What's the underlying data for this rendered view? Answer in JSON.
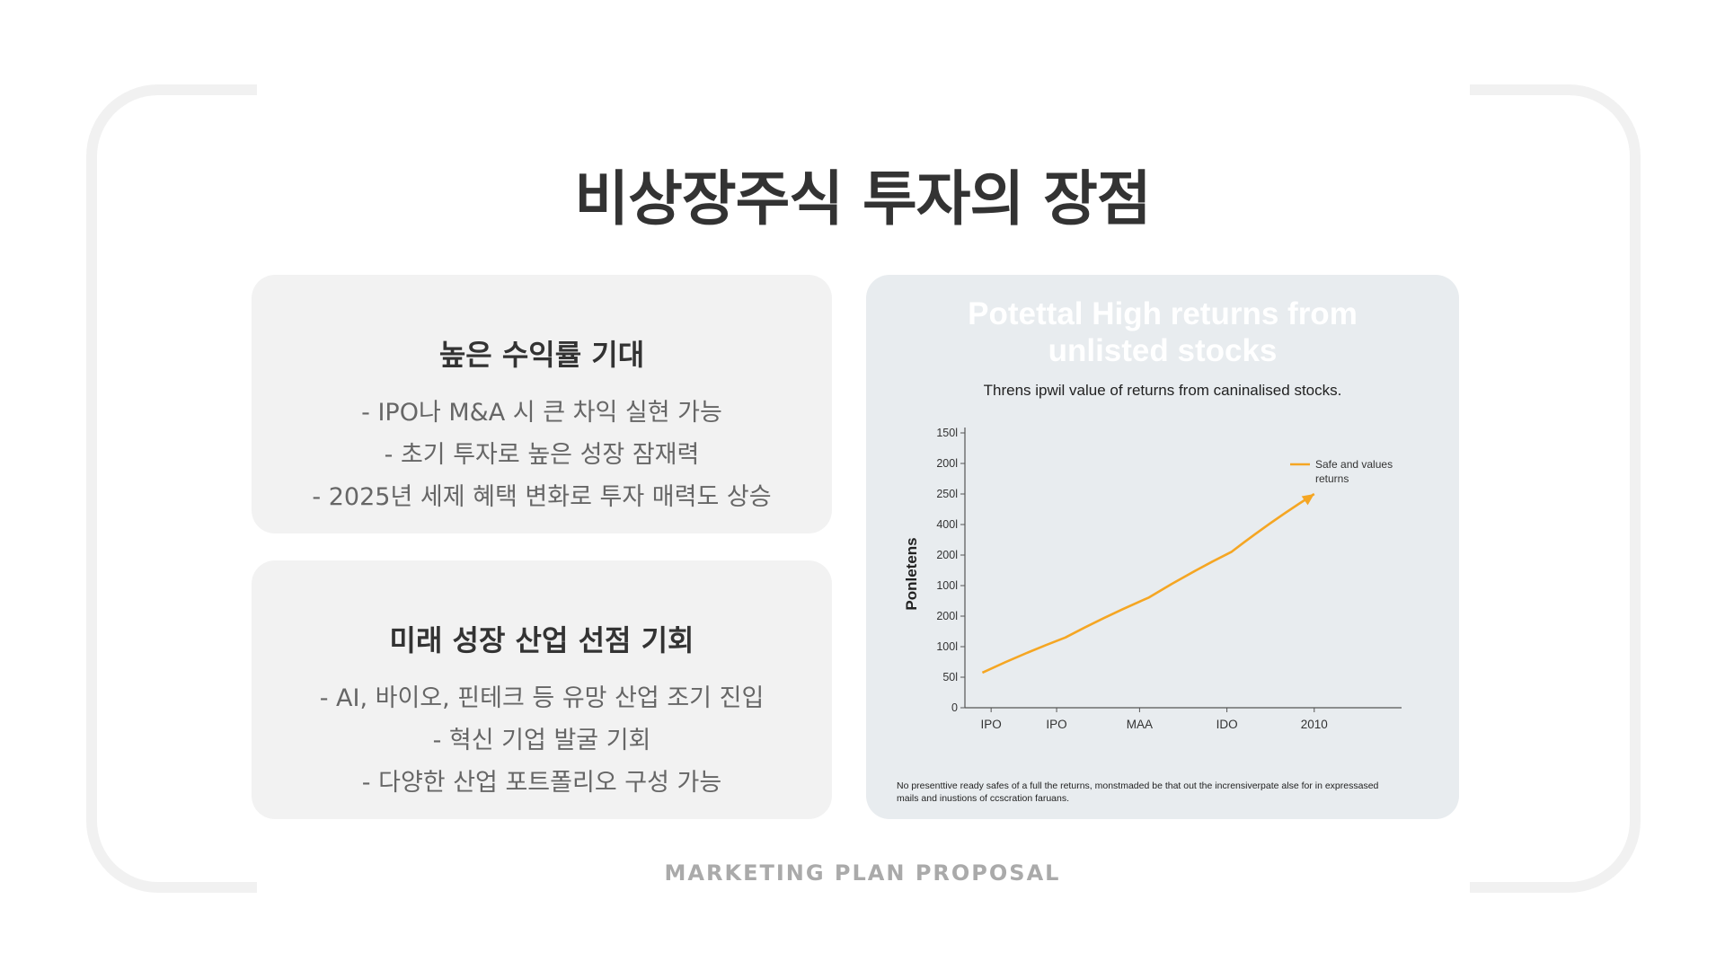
{
  "slide": {
    "title": "비상장주식 투자의 장점",
    "footer": "MARKETING PLAN PROPOSAL"
  },
  "cards": [
    {
      "title": "높은 수익률 기대",
      "lines": [
        "- IPO나 M&A 시 큰 차익 실현 가능",
        "- 초기 투자로 높은 성장 잠재력",
        "- 2025년 세제 혜택 변화로 투자 매력도 상승"
      ]
    },
    {
      "title": "미래 성장 산업 선점 기회",
      "lines": [
        "- AI, 바이오, 핀테크 등 유망 산업 조기 진입",
        "- 혁신 기업 발굴 기회",
        "- 다양한 산업 포트폴리오 구성 가능"
      ]
    }
  ],
  "chart_data": {
    "type": "line",
    "title": "Potettal High returns from unlisted stocks",
    "title_lines": [
      "Potettal High returns from",
      "unlisted stocks"
    ],
    "subtitle": "Threns ipwil value of returns from caninalised stocks.",
    "ylabel": "Ponletens",
    "xlabel": "",
    "y_tick_labels": [
      "0",
      "50l",
      "100l",
      "200l",
      "100l",
      "200l",
      "400l",
      "250l",
      "200l",
      "150l"
    ],
    "x_tick_labels": [
      "IPO",
      "IPO",
      "MAA",
      "IDO",
      "2010"
    ],
    "series": [
      {
        "name": "Safe and values returns",
        "legend_lines": [
          "Safe and values",
          "returns"
        ],
        "x": [
          0,
          1,
          2,
          3,
          4
        ],
        "y_tick_position": [
          1.15,
          2.3,
          3.6,
          5.1,
          7.0
        ],
        "color": "#f5a623"
      }
    ],
    "legend_position": "top-right",
    "grid": false,
    "footnote_lines": [
      "No presenttive ready safes of a full the returns, monstmaded be that out the incrensiverpate alse for in expressased",
      "mails and inustions of ccscration faruans."
    ]
  },
  "colors": {
    "accent": "#f5a623",
    "card_bg": "#f2f2f2",
    "chart_bg": "#e8ecef",
    "title": "#333333",
    "body_text": "#666666",
    "footer": "#aaaaaa"
  }
}
